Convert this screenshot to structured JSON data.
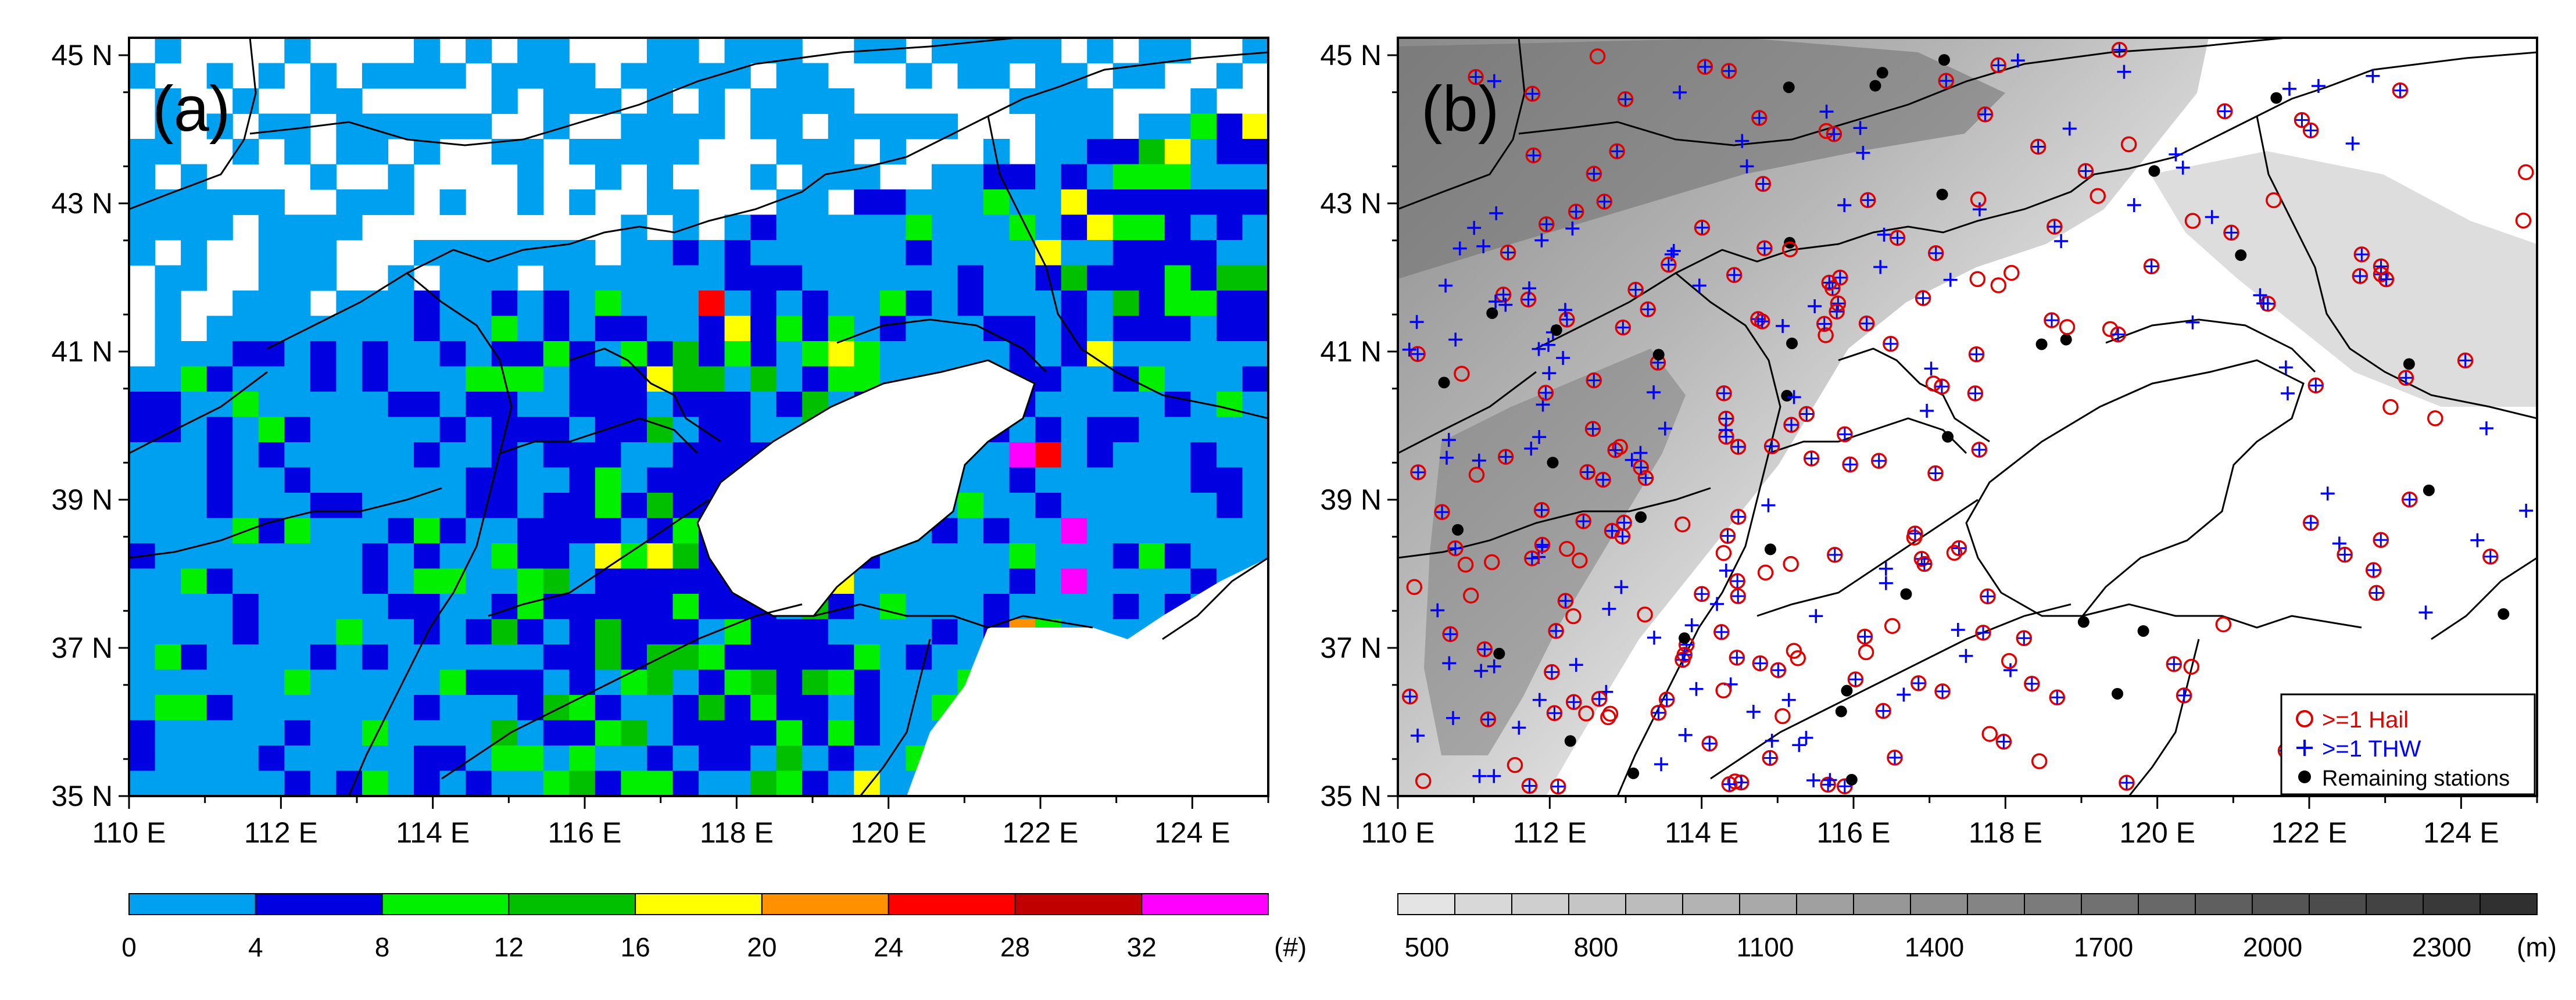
{
  "panels": [
    {
      "label": "(a)",
      "y_ticks": [
        "45 N",
        "43 N",
        "41 N",
        "39 N",
        "37 N",
        "35 N"
      ],
      "x_ticks": [
        "110 E",
        "112 E",
        "114 E",
        "116 E",
        "118 E",
        "120 E",
        "122 E",
        "124 E"
      ],
      "colorbar": {
        "labels": [
          "0",
          "4",
          "8",
          "12",
          "16",
          "20",
          "24",
          "28",
          "32"
        ],
        "unit": "(#)",
        "colors": [
          "#00a0f0",
          "#0000e0",
          "#00f000",
          "#00c000",
          "#ffff00",
          "#ff9000",
          "#ff0000",
          "#c00000",
          "#ff00ff"
        ]
      }
    },
    {
      "label": "(b)",
      "y_ticks": [
        "45 N",
        "43 N",
        "41 N",
        "39 N",
        "37 N",
        "35 N"
      ],
      "x_ticks": [
        "110 E",
        "112 E",
        "114 E",
        "116 E",
        "118 E",
        "120 E",
        "122 E",
        "124 E"
      ],
      "legend": [
        {
          "label": ">=1 Hail",
          "color": "#e00000",
          "icon": "red-circle-icon"
        },
        {
          "label": ">=1 THW",
          "color": "#0000ff",
          "icon": "blue-plus-icon"
        },
        {
          "label": "Remaining stations",
          "color": "#000000",
          "icon": "black-dot-icon"
        }
      ],
      "colorbar": {
        "labels": [
          "500",
          "800",
          "1100",
          "1400",
          "1700",
          "2000",
          "2300"
        ],
        "unit": "(m)",
        "colors": [
          "#e4e4e4",
          "#d8d8d8",
          "#cfcfcf",
          "#c5c5c5",
          "#bcbcbc",
          "#b3b3b3",
          "#a9a9a9",
          "#a0a0a0",
          "#979797",
          "#8d8d8d",
          "#848484",
          "#7b7b7b",
          "#717171",
          "#686868",
          "#5f5f5f",
          "#555555",
          "#4c4c4c",
          "#434343",
          "#393939",
          "#303030"
        ]
      }
    }
  ]
}
